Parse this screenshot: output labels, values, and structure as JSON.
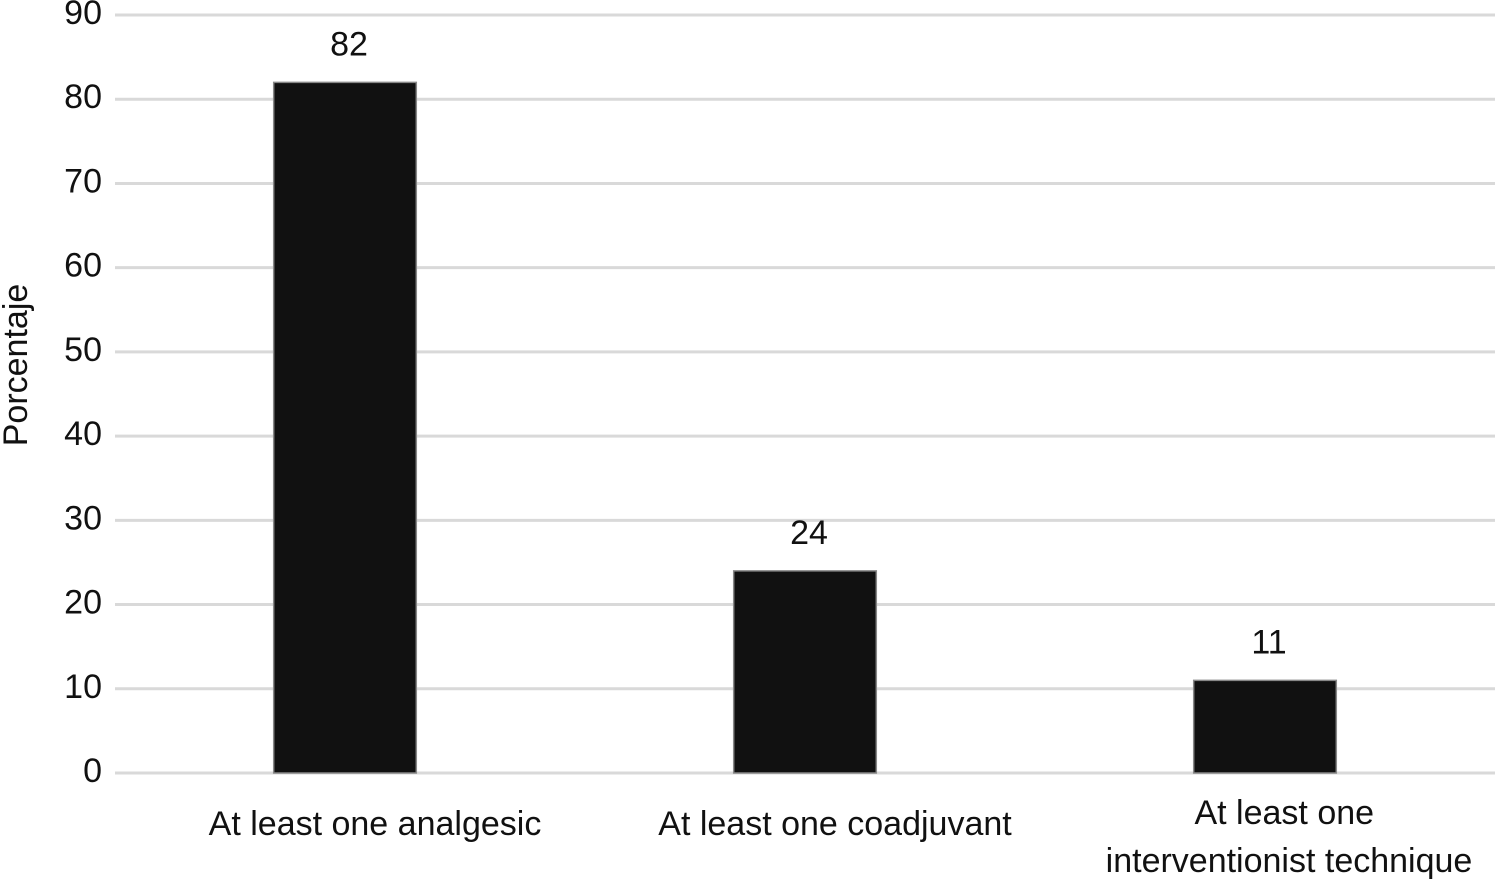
{
  "chart_data": {
    "type": "bar",
    "y_label": "Porcentaje",
    "categories": [
      "At least one analgesic",
      "At least one coadjuvant",
      "At least one interventionist technique"
    ],
    "values": [
      82,
      24,
      11
    ],
    "color": "#111111",
    "ylim": [
      0,
      90
    ],
    "yticks": [
      0,
      10,
      20,
      30,
      40,
      50,
      60,
      70,
      80,
      90
    ],
    "grid": true
  }
}
